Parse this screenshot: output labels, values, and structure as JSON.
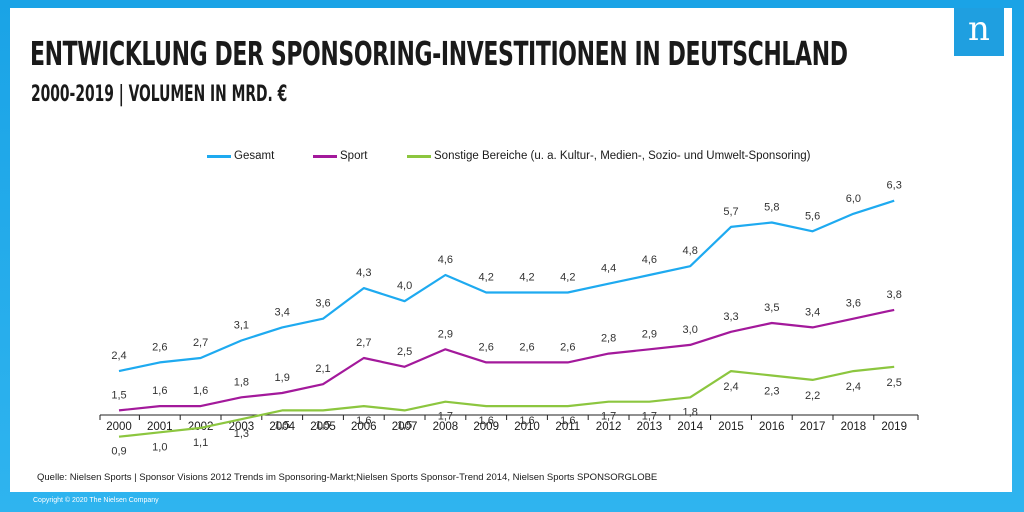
{
  "header": {
    "title": "ENTWICKLUNG DER SPONSORING-INVESTITIONEN IN DEUTSCHLAND",
    "subtitle": "2000-2019 | VOLUMEN IN MRD. €",
    "logo_letter": "n"
  },
  "footer": {
    "source": "Quelle: Nielsen Sports | Sponsor Visions 2012 Trends im Sponsoring-Markt;Nielsen Sports Sponsor-Trend 2014, Nielsen Sports SPONSORGLOBE",
    "copyright": "Copyright © 2020 The Nielsen Company"
  },
  "colors": {
    "frame": "#1ea6e8",
    "gesamt": "#1eaaf0",
    "sport": "#a3199b",
    "sonstige": "#8cc63f",
    "axis": "#222222"
  },
  "chart_data": {
    "type": "line",
    "title": "ENTWICKLUNG DER SPONSORING-INVESTITIONEN IN DEUTSCHLAND",
    "subtitle": "2000-2019 | VOLUMEN IN MRD. €",
    "xlabel": "",
    "ylabel": "",
    "ylim": [
      0,
      7
    ],
    "grid": false,
    "legend_position": "top",
    "categories": [
      "2000",
      "2001",
      "2002",
      "2003",
      "2004",
      "2005",
      "2006",
      "2007",
      "2008",
      "2009",
      "2010",
      "2011",
      "2012",
      "2013",
      "2014",
      "2015",
      "2016",
      "2017",
      "2018",
      "2019"
    ],
    "series": [
      {
        "name": "Gesamt",
        "color": "#1eaaf0",
        "values": [
          2.4,
          2.6,
          2.7,
          3.1,
          3.4,
          3.6,
          4.3,
          4.0,
          4.6,
          4.2,
          4.2,
          4.2,
          4.4,
          4.6,
          4.8,
          5.7,
          5.8,
          5.6,
          6.0,
          6.3
        ],
        "labels": [
          "2,4",
          "2,6",
          "2,7",
          "3,1",
          "3,4",
          "3,6",
          "4,3",
          "4,0",
          "4,6",
          "4,2",
          "4,2",
          "4,2",
          "4,4",
          "4,6",
          "4,8",
          "5,7",
          "5,8",
          "5,6",
          "6,0",
          "6,3"
        ]
      },
      {
        "name": "Sport",
        "color": "#a3199b",
        "values": [
          1.5,
          1.6,
          1.6,
          1.8,
          1.9,
          2.1,
          2.7,
          2.5,
          2.9,
          2.6,
          2.6,
          2.6,
          2.8,
          2.9,
          3.0,
          3.3,
          3.5,
          3.4,
          3.6,
          3.8
        ],
        "labels": [
          "1,5",
          "1,6",
          "1,6",
          "1,8",
          "1,9",
          "2,1",
          "2,7",
          "2,5",
          "2,9",
          "2,6",
          "2,6",
          "2,6",
          "2,8",
          "2,9",
          "3,0",
          "3,3",
          "3,5",
          "3,4",
          "3,6",
          "3,8"
        ]
      },
      {
        "name": "Sonstige Bereiche (u. a. Kultur-, Medien-, Sozio- und Umwelt-Sponsoring)",
        "color": "#8cc63f",
        "values": [
          0.9,
          1.0,
          1.1,
          1.3,
          1.5,
          1.5,
          1.6,
          1.5,
          1.7,
          1.6,
          1.6,
          1.6,
          1.7,
          1.7,
          1.8,
          2.4,
          2.3,
          2.2,
          2.4,
          2.5
        ],
        "labels": [
          "0,9",
          "1,0",
          "1,1",
          "1,3",
          "1,5",
          "1,5",
          "1,6",
          "1,5",
          "1,7",
          "1,6",
          "1,6",
          "1,6",
          "1,7",
          "1,7",
          "1,8",
          "2,4",
          "2,3",
          "2,2",
          "2,4",
          "2,5"
        ]
      }
    ]
  }
}
